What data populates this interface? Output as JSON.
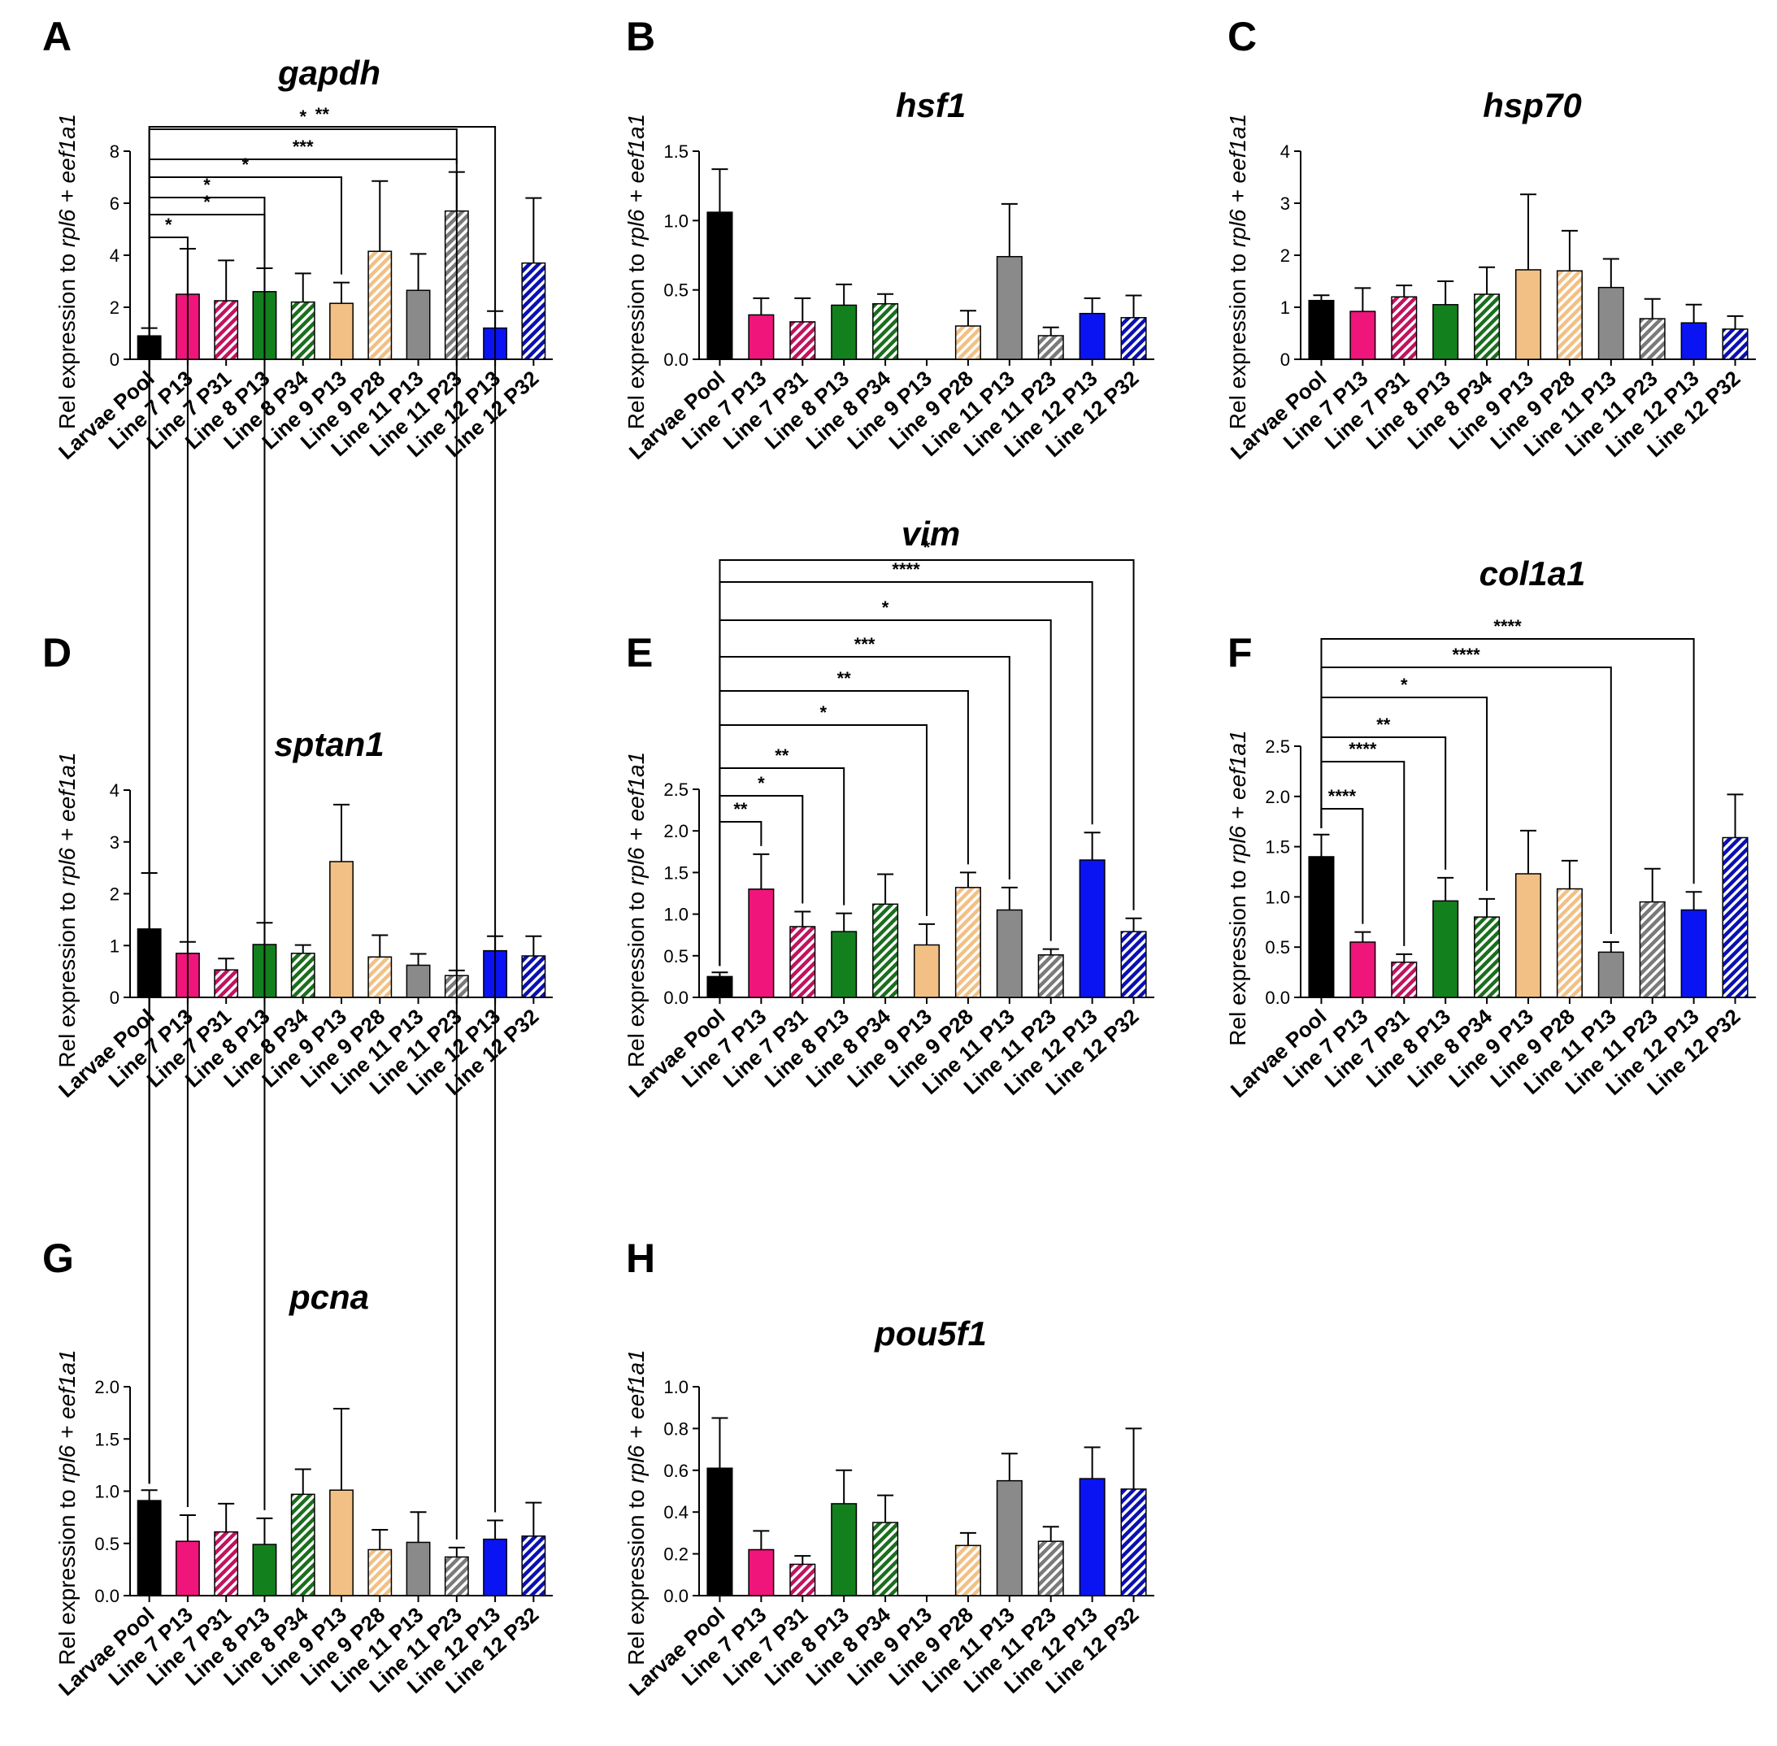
{
  "figure": {
    "categories": [
      "Larvae Pool",
      "Line 7 P13",
      "Line 7 P31",
      "Line 8 P13",
      "Line 8 P34",
      "Line 9 P13",
      "Line 9 P28",
      "Line 11  P13",
      "Line 11 P23",
      "Line 12 P13",
      "Line 12 P32"
    ],
    "colors": [
      "#000000",
      "#f0157b",
      "#c0135f",
      "#13801e",
      "#1b6e1e",
      "#f2c084",
      "#f2c084",
      "#8a8a8a",
      "#7a7a7a",
      "#0a14f2",
      "#0a10b0"
    ],
    "hatched": [
      false,
      false,
      true,
      false,
      true,
      false,
      true,
      false,
      true,
      false,
      true
    ]
  },
  "chart_data": [
    {
      "panel": "A",
      "title": "gapdh",
      "type": "bar",
      "ylabel_prefix": "Rel expression to ",
      "ylabel_genes": "rpl6 + eef1a1",
      "ylim": [
        0,
        8
      ],
      "yticks": [
        "0",
        "2",
        "4",
        "6",
        "8"
      ],
      "values": [
        0.9,
        2.5,
        2.25,
        2.6,
        2.2,
        2.15,
        4.15,
        2.65,
        5.7,
        1.2,
        3.7
      ],
      "errors": [
        0.3,
        1.75,
        1.55,
        0.9,
        1.1,
        0.8,
        2.7,
        1.4,
        1.5,
        0.65,
        2.5
      ],
      "sig": [
        {
          "from": 0,
          "to": 3,
          "label": "*"
        },
        {
          "from": 0,
          "to": 5,
          "label": "*"
        },
        {
          "from": 0,
          "to": 8,
          "label": "*"
        }
      ]
    },
    {
      "panel": "B",
      "title": "hsf1",
      "type": "bar",
      "ylabel_prefix": "Rel expression to ",
      "ylabel_genes": "rpl6 + eef1a1",
      "ylim": [
        0,
        1.5
      ],
      "yticks": [
        "0.0",
        "0.5",
        "1.0",
        "1.5"
      ],
      "values": [
        1.06,
        0.32,
        0.27,
        0.39,
        0.4,
        0,
        0.24,
        0.74,
        0.17,
        0.33,
        0.3
      ],
      "errors": [
        0.31,
        0.12,
        0.17,
        0.15,
        0.07,
        0,
        0.11,
        0.38,
        0.06,
        0.11,
        0.16
      ],
      "sig": []
    },
    {
      "panel": "C",
      "title": "hsp70",
      "type": "bar",
      "ylabel_prefix": "Rel expression to ",
      "ylabel_genes": "rpl6 + eef1a1",
      "ylim": [
        0,
        4
      ],
      "yticks": [
        "0",
        "1",
        "2",
        "3",
        "4"
      ],
      "values": [
        1.13,
        0.92,
        1.2,
        1.05,
        1.25,
        1.72,
        1.7,
        1.38,
        0.78,
        0.7,
        0.58
      ],
      "errors": [
        0.1,
        0.45,
        0.22,
        0.45,
        0.52,
        1.45,
        0.77,
        0.55,
        0.38,
        0.35,
        0.25
      ],
      "sig": []
    },
    {
      "panel": "D",
      "title": "sptan1",
      "type": "bar",
      "ylabel_prefix": "Rel expression to ",
      "ylabel_genes": "rpl6 + eef1a1",
      "ylim": [
        0,
        4
      ],
      "yticks": [
        "0",
        "1",
        "2",
        "3",
        "4"
      ],
      "values": [
        1.32,
        0.85,
        0.53,
        1.02,
        0.85,
        2.62,
        0.78,
        0.62,
        0.42,
        0.9,
        0.8
      ],
      "errors": [
        1.08,
        0.22,
        0.22,
        0.42,
        0.16,
        1.1,
        0.42,
        0.22,
        0.1,
        0.28,
        0.38
      ],
      "sig": []
    },
    {
      "panel": "E",
      "title": "vim",
      "type": "bar",
      "ylabel_prefix": "Rel expression to ",
      "ylabel_genes": "rpl6 + eef1a1",
      "ylim": [
        0,
        2.5
      ],
      "yticks": [
        "0.0",
        "0.5",
        "1.0",
        "1.5",
        "2.0",
        "2.5"
      ],
      "values": [
        0.25,
        1.3,
        0.85,
        0.79,
        1.12,
        0.63,
        1.32,
        1.05,
        0.51,
        1.65,
        0.79
      ],
      "errors": [
        0.05,
        0.42,
        0.18,
        0.22,
        0.36,
        0.25,
        0.18,
        0.27,
        0.07,
        0.33,
        0.16
      ],
      "sig": [
        {
          "from": 0,
          "to": 1,
          "label": "**"
        },
        {
          "from": 0,
          "to": 2,
          "label": "*"
        },
        {
          "from": 0,
          "to": 3,
          "label": "**"
        },
        {
          "from": 0,
          "to": 5,
          "label": "*"
        },
        {
          "from": 0,
          "to": 6,
          "label": "**"
        },
        {
          "from": 0,
          "to": 7,
          "label": "***"
        },
        {
          "from": 0,
          "to": 8,
          "label": "*"
        },
        {
          "from": 0,
          "to": 9,
          "label": "****"
        },
        {
          "from": 0,
          "to": 10,
          "label": "*"
        }
      ]
    },
    {
      "panel": "F",
      "title": "col1a1",
      "type": "bar",
      "ylabel_prefix": "Rel expression to ",
      "ylabel_genes": "rpl6 + eef1a1",
      "ylim": [
        0,
        2.5
      ],
      "yticks": [
        "0.0",
        "0.5",
        "1.0",
        "1.5",
        "2.0",
        "2.5"
      ],
      "values": [
        1.4,
        0.55,
        0.35,
        0.96,
        0.8,
        1.23,
        1.08,
        0.45,
        0.95,
        0.87,
        1.59
      ],
      "errors": [
        0.22,
        0.1,
        0.08,
        0.23,
        0.18,
        0.43,
        0.28,
        0.1,
        0.33,
        0.18,
        0.43
      ],
      "sig": [
        {
          "from": 0,
          "to": 1,
          "label": "****"
        },
        {
          "from": 0,
          "to": 2,
          "label": "****"
        },
        {
          "from": 0,
          "to": 3,
          "label": "**"
        },
        {
          "from": 0,
          "to": 4,
          "label": "*"
        },
        {
          "from": 0,
          "to": 7,
          "label": "****"
        },
        {
          "from": 0,
          "to": 9,
          "label": "****"
        }
      ]
    },
    {
      "panel": "G",
      "title": "pcna",
      "type": "bar",
      "ylabel_prefix": "Rel expression to ",
      "ylabel_genes": "rpl6 + eef1a1",
      "ylim": [
        0,
        2.0
      ],
      "yticks": [
        "0.0",
        "0.5",
        "1.0",
        "1.5",
        "2.0"
      ],
      "values": [
        0.91,
        0.52,
        0.61,
        0.49,
        0.97,
        1.01,
        0.44,
        0.51,
        0.37,
        0.54,
        0.57
      ],
      "errors": [
        0.1,
        0.25,
        0.27,
        0.25,
        0.24,
        0.78,
        0.19,
        0.29,
        0.09,
        0.18,
        0.32
      ],
      "sig": [
        {
          "from": 0,
          "to": 1,
          "label": "*"
        },
        {
          "from": 0,
          "to": 3,
          "label": "*"
        },
        {
          "from": 0,
          "to": 8,
          "label": "***"
        },
        {
          "from": 0,
          "to": 9,
          "label": "**"
        }
      ]
    },
    {
      "panel": "H",
      "title": "pou5f1",
      "type": "bar",
      "ylabel_prefix": "Rel expression to ",
      "ylabel_genes": "rpl6 + eef1a1",
      "ylim": [
        0,
        1.0
      ],
      "yticks": [
        "0.0",
        "0.2",
        "0.4",
        "0.6",
        "0.8",
        "1.0"
      ],
      "values": [
        0.61,
        0.22,
        0.15,
        0.44,
        0.35,
        0,
        0.24,
        0.55,
        0.26,
        0.56,
        0.51
      ],
      "errors": [
        0.24,
        0.09,
        0.04,
        0.16,
        0.13,
        0,
        0.06,
        0.13,
        0.07,
        0.15,
        0.29
      ],
      "sig": []
    }
  ]
}
